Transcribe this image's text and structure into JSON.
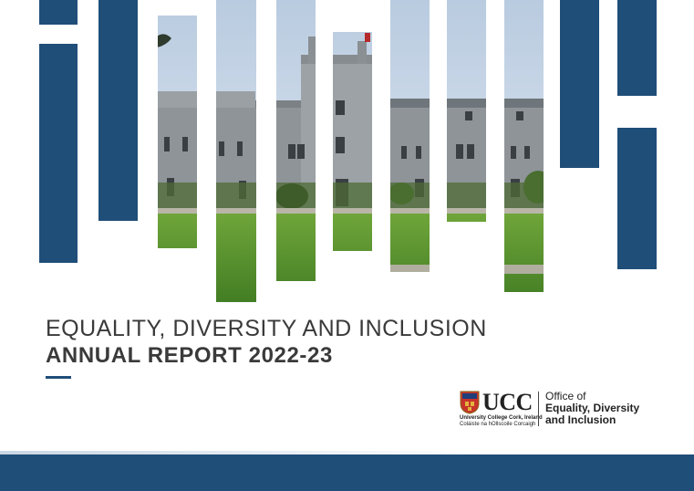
{
  "cover": {
    "title": "EQUALITY, DIVERSITY AND INCLUSION",
    "subtitle": "ANNUAL REPORT 2022-23"
  },
  "logo": {
    "wordmark": "UCC",
    "line1": "University College Cork, Ireland",
    "line2": "Coláiste na hOllscoile Corcaigh",
    "office_line1": "Office of",
    "office_line2": "Equality, Diversity",
    "office_line3": "and Inclusion"
  },
  "colors": {
    "brand_blue": "#1f4e79",
    "text": "#3a3a3a"
  },
  "icons": [
    "ucc-crest-icon"
  ]
}
